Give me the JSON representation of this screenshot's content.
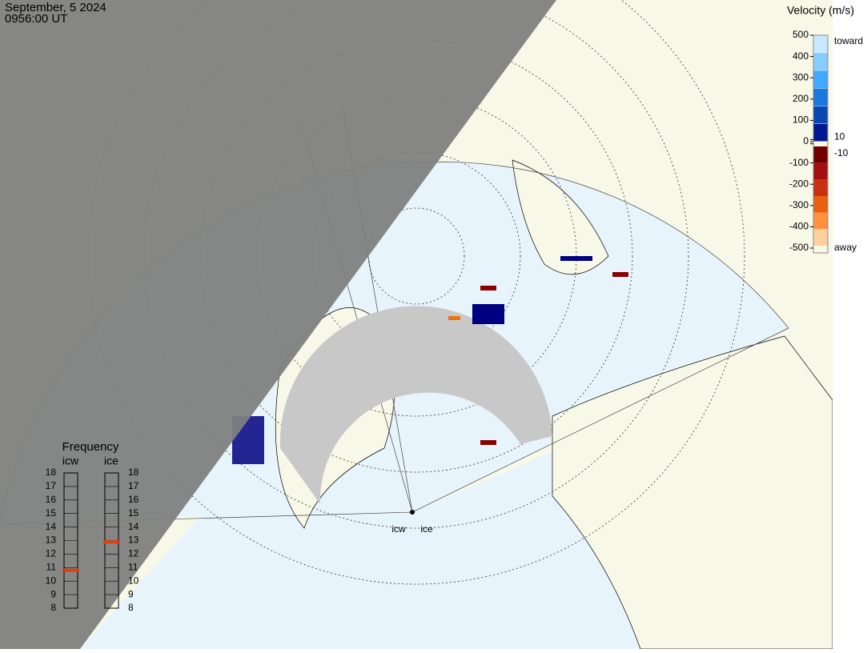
{
  "header": {
    "date": "September, 5 2024",
    "time": "0956:00 UT"
  },
  "velocity_scale": {
    "title": "Velocity (m/s)",
    "ticks": [
      500,
      400,
      300,
      200,
      100,
      10,
      0,
      -10,
      -100,
      -200,
      -300,
      -400,
      -500
    ],
    "ylim": [
      -500,
      500
    ],
    "toward": "toward",
    "away": "away"
  },
  "frequency": {
    "title": "Frequency",
    "ticks": [
      8,
      9,
      10,
      11,
      12,
      13,
      14,
      15,
      16,
      17,
      18
    ],
    "ylim": [
      8,
      18
    ],
    "radars": [
      {
        "name": "icw",
        "value": 10.8
      },
      {
        "name": "ice",
        "value": 12.9
      }
    ]
  },
  "radar_sites": [
    "icw",
    "ice"
  ]
}
